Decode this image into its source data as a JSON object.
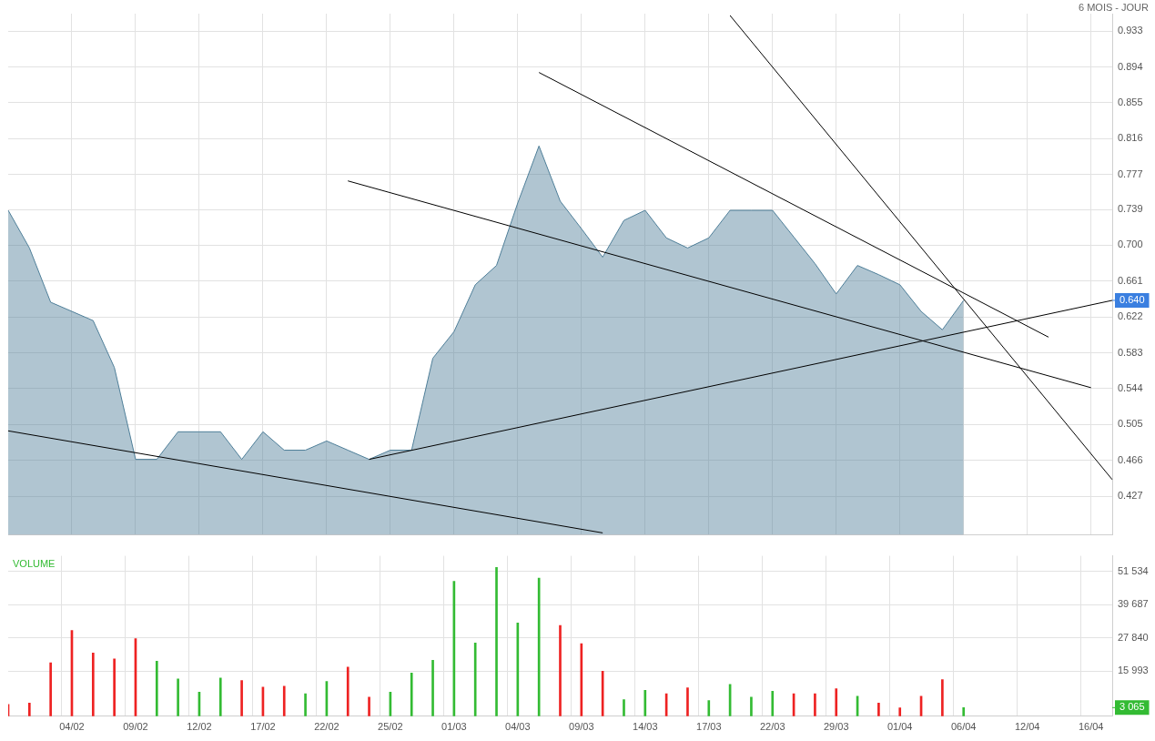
{
  "chart_data": [
    {
      "type": "area",
      "subtitle": "6 MOIS - JOUR",
      "categories": [
        null,
        null,
        null,
        null,
        null,
        null,
        null,
        null,
        null,
        null,
        null,
        null,
        null,
        null,
        null,
        null,
        null,
        null,
        null,
        null,
        null,
        null,
        null,
        null,
        null,
        null,
        null,
        null,
        null,
        null,
        null,
        null,
        null,
        null,
        null,
        null,
        null,
        null,
        null,
        null,
        null,
        null,
        null,
        null,
        null,
        null,
        null,
        null,
        null,
        null,
        null,
        null,
        null
      ],
      "series": [
        {
          "type": "area",
          "color": "#4f7f99",
          "values": [
            0.738,
            0.697,
            0.638,
            0.628,
            0.618,
            0.567,
            0.467,
            0.467,
            0.497,
            0.497,
            0.497,
            0.467,
            0.497,
            0.477,
            0.477,
            0.487,
            0.477,
            0.467,
            0.477,
            0.477,
            0.577,
            0.606,
            0.657,
            0.678,
            0.746,
            0.808,
            0.748,
            0.718,
            0.687,
            0.727,
            0.738,
            0.708,
            0.697,
            0.708,
            0.738,
            0.738,
            0.738,
            0.709,
            0.68,
            0.647,
            0.678,
            0.668,
            0.657,
            0.628,
            0.608,
            0.64,
            null,
            null,
            null,
            null,
            null,
            null,
            null
          ]
        },
        {
          "type": "line",
          "color": "#000000",
          "values": [
            0.498,
            null,
            null,
            null,
            null,
            null,
            null,
            null,
            null,
            null,
            null,
            null,
            null,
            null,
            null,
            null,
            null,
            null,
            null,
            null,
            null,
            null,
            null,
            null,
            null,
            null,
            null,
            null,
            0.387,
            null,
            null,
            null,
            null,
            null,
            null,
            null,
            null,
            null,
            null,
            null,
            null,
            null,
            null,
            null,
            null,
            null,
            null,
            null,
            null,
            null,
            null,
            null,
            null
          ]
        },
        {
          "type": "line",
          "color": "#000000",
          "values": [
            null,
            null,
            null,
            null,
            null,
            null,
            null,
            null,
            null,
            null,
            null,
            null,
            null,
            null,
            null,
            null,
            null,
            0.467,
            null,
            null,
            null,
            null,
            null,
            null,
            null,
            null,
            null,
            null,
            null,
            null,
            null,
            null,
            null,
            null,
            null,
            null,
            null,
            null,
            null,
            null,
            null,
            null,
            null,
            null,
            null,
            null,
            null,
            null,
            null,
            null,
            null,
            null,
            0.64
          ]
        },
        {
          "type": "line",
          "color": "#000000",
          "values": [
            null,
            null,
            null,
            null,
            null,
            null,
            null,
            null,
            null,
            null,
            null,
            null,
            null,
            null,
            null,
            null,
            0.77,
            null,
            null,
            null,
            null,
            null,
            null,
            null,
            null,
            null,
            null,
            null,
            null,
            null,
            null,
            null,
            null,
            null,
            null,
            null,
            null,
            null,
            null,
            null,
            null,
            null,
            null,
            null,
            null,
            null,
            null,
            null,
            null,
            null,
            null,
            0.545,
            null
          ]
        },
        {
          "type": "line",
          "color": "#000000",
          "values": [
            null,
            null,
            null,
            null,
            null,
            null,
            null,
            null,
            null,
            null,
            null,
            null,
            null,
            null,
            null,
            null,
            null,
            null,
            null,
            null,
            null,
            null,
            null,
            null,
            null,
            0.888,
            null,
            null,
            null,
            null,
            null,
            null,
            null,
            null,
            null,
            null,
            null,
            null,
            null,
            null,
            null,
            null,
            null,
            null,
            null,
            null,
            null,
            null,
            null,
            0.6,
            null,
            null,
            null
          ]
        },
        {
          "type": "line",
          "color": "#000000",
          "values": [
            null,
            null,
            null,
            null,
            null,
            null,
            null,
            null,
            null,
            null,
            null,
            null,
            null,
            null,
            null,
            null,
            null,
            null,
            null,
            null,
            null,
            null,
            null,
            null,
            null,
            null,
            null,
            null,
            null,
            null,
            null,
            null,
            null,
            null,
            0.95,
            null,
            null,
            null,
            null,
            null,
            null,
            null,
            null,
            null,
            null,
            null,
            null,
            null,
            null,
            null,
            null,
            null,
            0.445
          ]
        }
      ],
      "ylim": [
        0.385,
        0.952
      ],
      "yticks": [
        0.427,
        0.466,
        0.505,
        0.544,
        0.583,
        0.622,
        0.661,
        {
          "value": 0.7,
          "label": "0.700"
        },
        0.739,
        0.777,
        0.816,
        0.855,
        0.894,
        0.933
      ],
      "annotations": [
        "0.640"
      ],
      "grid": true,
      "legend": false,
      "marker": "none",
      "tick_labels": "y"
    },
    {
      "type": "bar",
      "title": "VOLUME",
      "categories": [
        null,
        null,
        null,
        "04/02",
        null,
        null,
        "09/02",
        null,
        null,
        "12/02",
        null,
        null,
        "17/02",
        null,
        null,
        "22/02",
        null,
        null,
        "25/02",
        null,
        null,
        "01/03",
        null,
        null,
        "04/03",
        null,
        null,
        "09/03",
        null,
        null,
        "14/03",
        null,
        null,
        "17/03",
        null,
        null,
        "22/03",
        null,
        null,
        "29/03",
        null,
        null,
        "01/04",
        null,
        null,
        "06/04",
        null,
        null,
        "12/04",
        null,
        null,
        "16/04",
        null
      ],
      "values": [
        4200,
        4700,
        19000,
        30500,
        22500,
        20400,
        27600,
        19600,
        13300,
        8600,
        13600,
        12700,
        10400,
        10700,
        8000,
        12400,
        17500,
        6800,
        8600,
        15400,
        19900,
        48000,
        26100,
        53000,
        33200,
        49200,
        32300,
        25800,
        16000,
        5900,
        9200,
        8000,
        10100,
        5600,
        11300,
        6800,
        8900,
        8000,
        8000,
        9800,
        7100,
        4700,
        3000,
        7100,
        13000,
        3065,
        null,
        null,
        null,
        null,
        null,
        null,
        null
      ],
      "colors": [
        "#ee2222",
        "#ee2222",
        "#ee2222",
        "#ee2222",
        "#ee2222",
        "#ee2222",
        "#ee2222",
        "#33bb33",
        "#33bb33",
        "#33bb33",
        "#33bb33",
        "#ee2222",
        "#ee2222",
        "#ee2222",
        "#33bb33",
        "#33bb33",
        "#ee2222",
        "#ee2222",
        "#33bb33",
        "#33bb33",
        "#33bb33",
        "#33bb33",
        "#33bb33",
        "#33bb33",
        "#33bb33",
        "#33bb33",
        "#ee2222",
        "#ee2222",
        "#ee2222",
        "#33bb33",
        "#33bb33",
        "#ee2222",
        "#ee2222",
        "#33bb33",
        "#33bb33",
        "#33bb33",
        "#33bb33",
        "#ee2222",
        "#ee2222",
        "#ee2222",
        "#33bb33",
        "#ee2222",
        "#ee2222",
        "#ee2222",
        "#ee2222",
        "#33bb33",
        null,
        null,
        null,
        null,
        null,
        null,
        null
      ],
      "ylim": [
        0,
        57100
      ],
      "yticks": [
        {
          "value": 15993,
          "label": "15 993"
        },
        {
          "value": 27840,
          "label": "27 840"
        },
        {
          "value": 39687,
          "label": "39 687"
        },
        {
          "value": 51534,
          "label": "51 534"
        }
      ],
      "annotations": [
        "3 065"
      ],
      "grid": true,
      "legend": false
    }
  ]
}
